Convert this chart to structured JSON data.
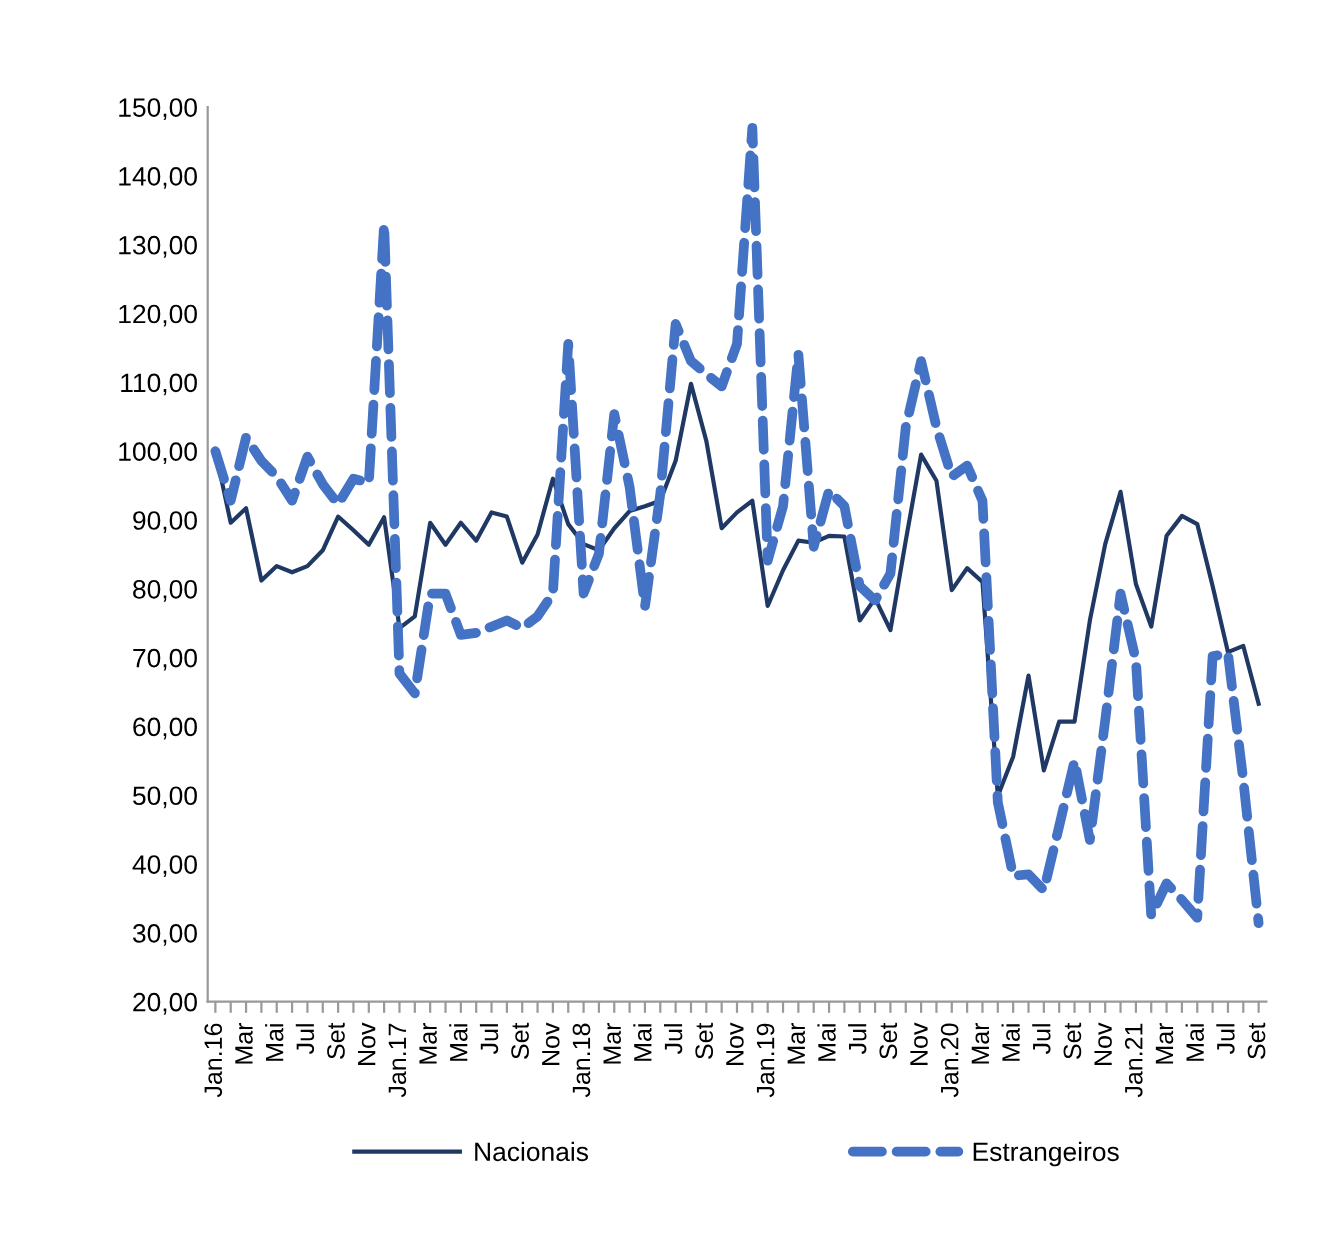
{
  "chart_data": {
    "type": "line",
    "categories": [
      "Jan.16",
      null,
      "Mar",
      null,
      "Mai",
      null,
      "Jul",
      null,
      "Set",
      null,
      "Nov",
      null,
      "Jan.17",
      null,
      "Mar",
      null,
      "Mai",
      null,
      "Jul",
      null,
      "Set",
      null,
      "Nov",
      null,
      "Jan.18",
      null,
      "Mar",
      null,
      "Mai",
      null,
      "Jul",
      null,
      "Set",
      null,
      "Nov",
      null,
      "Jan.19",
      null,
      "Mar",
      null,
      "Mai",
      null,
      "Jul",
      null,
      "Set",
      null,
      "Nov",
      null,
      "Jan.20",
      null,
      "Mar",
      null,
      "Mai",
      null,
      "Jul",
      null,
      "Set",
      null,
      "Nov",
      null,
      "Jan.21",
      null,
      "Mar",
      null,
      "Mai",
      null,
      "Jul",
      null,
      "Set"
    ],
    "series": [
      {
        "name": "Nacionais",
        "color": "#1f3864",
        "line_style": "solid",
        "values": [
          100,
          89.6,
          91.7,
          81.2,
          83.3,
          82.4,
          83.3,
          85.6,
          90.5,
          88.5,
          86.4,
          90.4,
          74.3,
          76,
          89.6,
          86.4,
          89.6,
          87,
          91.1,
          90.5,
          83.8,
          87.9,
          96,
          89.4,
          86.5,
          85.6,
          88.8,
          91.3,
          92,
          92.8,
          98.6,
          109.8,
          101.5,
          88.8,
          91.1,
          92.8,
          77.5,
          82.7,
          87,
          86.7,
          87.7,
          87.6,
          75.4,
          78.6,
          74,
          87,
          99.5,
          95.7,
          79.8,
          83,
          81,
          49.9,
          55.6,
          67.4,
          53.6,
          60.7,
          60.7,
          75.4,
          86.5,
          94.1,
          80.7,
          74.5,
          87.7,
          90.6,
          89.4,
          80.4,
          70.8,
          71.7,
          63.3
        ]
      },
      {
        "name": "Estrangeiros",
        "color": "#4472c4",
        "line_style": "dashed",
        "values": [
          100,
          92.8,
          102,
          98.6,
          96.3,
          92.8,
          99.2,
          95.2,
          92.3,
          96,
          95.4,
          133,
          67.7,
          64.8,
          79.3,
          79.3,
          73.3,
          73.6,
          74.5,
          75.4,
          74.3,
          76,
          79.3,
          115.6,
          79.3,
          85.1,
          105.4,
          94.8,
          77.4,
          93.8,
          118.5,
          113.1,
          111.2,
          109.4,
          115.6,
          147,
          84.1,
          92,
          114.1,
          86.1,
          94.3,
          92,
          80.4,
          78.3,
          82.2,
          103.5,
          113.1,
          103.5,
          96.3,
          97.9,
          92.8,
          49,
          38.3,
          38.5,
          36.2,
          45.5,
          55,
          43.5,
          60.9,
          79.3,
          69.6,
          32.5,
          37.2,
          34.8,
          32.2,
          70.2,
          70.6,
          52.2,
          31.4
        ]
      }
    ],
    "ylim": [
      20,
      150
    ],
    "yticks": [
      {
        "value": 20,
        "label": "20,00"
      },
      {
        "value": 30,
        "label": "30,00"
      },
      {
        "value": 40,
        "label": "40,00"
      },
      {
        "value": 50,
        "label": "50,00"
      },
      {
        "value": 60,
        "label": "60,00"
      },
      {
        "value": 70,
        "label": "70,00"
      },
      {
        "value": 80,
        "label": "80,00"
      },
      {
        "value": 90,
        "label": "90,00"
      },
      {
        "value": 100,
        "label": "100,00"
      },
      {
        "value": 110,
        "label": "110,00"
      },
      {
        "value": 120,
        "label": "120,00"
      },
      {
        "value": 130,
        "label": "130,00"
      },
      {
        "value": 140,
        "label": "140,00"
      },
      {
        "value": 150,
        "label": "150,00"
      }
    ],
    "legend": "bottom",
    "grid": false
  }
}
